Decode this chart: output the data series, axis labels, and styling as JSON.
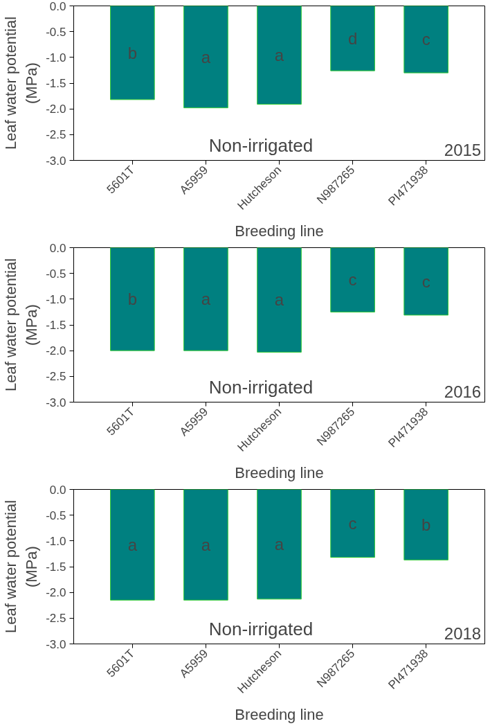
{
  "chart_data": [
    {
      "type": "bar",
      "xlabel": "Breeding line",
      "ylabel": "Leaf water potential\n(MPa)",
      "categories": [
        "5601T",
        "A5959",
        "Hutcheson",
        "N987265",
        "PI471938"
      ],
      "values": [
        -1.82,
        -1.98,
        -1.91,
        -1.26,
        -1.3
      ],
      "color": "#008080",
      "ylim": [
        -3.0,
        0.0
      ],
      "yticks": [
        {
          "value": -3.0,
          "label": "-3.0"
        },
        {
          "value": -2.5,
          "label": "-2.5"
        },
        {
          "value": -2.0,
          "label": "-2.0"
        },
        {
          "value": -1.5,
          "label": "-1.5"
        },
        {
          "value": -1.0,
          "label": "-1.0"
        },
        {
          "value": -0.5,
          "label": "-0.5"
        },
        {
          "value": 0.0,
          "label": "0.0"
        }
      ],
      "grid": false,
      "annotations": [
        "b",
        "a",
        "a",
        "d",
        "c",
        "Non-irrigated",
        "2015"
      ]
    },
    {
      "type": "bar",
      "xlabel": "Breeding line",
      "ylabel": "Leaf water potential\n(MPa)",
      "categories": [
        "5601T",
        "A5959",
        "Hutcheson",
        "N987265",
        "PI471938"
      ],
      "values": [
        -2.0,
        -2.0,
        -2.03,
        -1.25,
        -1.31
      ],
      "color": "#008080",
      "ylim": [
        -3.0,
        0.0
      ],
      "yticks": [
        {
          "value": -3.0,
          "label": "-3.0"
        },
        {
          "value": -2.5,
          "label": "-2.5"
        },
        {
          "value": -2.0,
          "label": "-2.0"
        },
        {
          "value": -1.5,
          "label": "-1.5"
        },
        {
          "value": -1.0,
          "label": "-1.0"
        },
        {
          "value": -0.5,
          "label": "-0.5"
        },
        {
          "value": 0.0,
          "label": "0.0"
        }
      ],
      "grid": false,
      "annotations": [
        "b",
        "a",
        "a",
        "c",
        "c",
        "Non-irrigated",
        "2016"
      ]
    },
    {
      "type": "bar",
      "xlabel": "Breeding line",
      "ylabel": "Leaf water potential\n(MPa)",
      "categories": [
        "5601T",
        "A5959",
        "Hutcheson",
        "N987265",
        "PI471938"
      ],
      "values": [
        -2.15,
        -2.15,
        -2.13,
        -1.32,
        -1.37
      ],
      "color": "#008080",
      "ylim": [
        -3.0,
        0.0
      ],
      "yticks": [
        {
          "value": -3.0,
          "label": "-3.0"
        },
        {
          "value": -2.5,
          "label": "-2.5"
        },
        {
          "value": -2.0,
          "label": "-2.0"
        },
        {
          "value": -1.5,
          "label": "-1.5"
        },
        {
          "value": -1.0,
          "label": "-1.0"
        },
        {
          "value": -0.5,
          "label": "-0.5"
        },
        {
          "value": 0.0,
          "label": "0.0"
        }
      ],
      "grid": false,
      "annotations": [
        "a",
        "a",
        "a",
        "c",
        "b",
        "Non-irrigated",
        "2018"
      ]
    }
  ]
}
